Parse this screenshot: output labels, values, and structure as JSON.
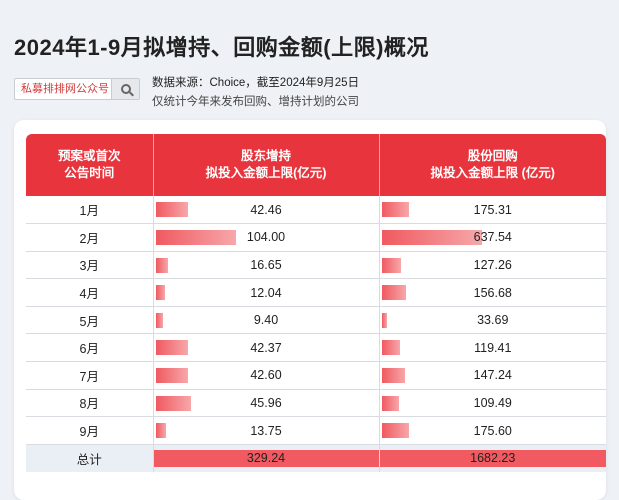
{
  "title": "2024年1-9月拟增持、回购金额(上限)概况",
  "search": {
    "text": "私募排排网公众号"
  },
  "notes": {
    "source": "数据来源：Choice，截至2024年9月25日",
    "scope": "仅统计今年来发布回购、增持计划的公司"
  },
  "table": {
    "headers": [
      [
        "预案或首次",
        "公告时间"
      ],
      [
        "股东增持",
        "拟投入金额上限(亿元)"
      ],
      [
        "股份回购",
        "拟投入金额上限 (亿元)"
      ]
    ],
    "total_label": "总计",
    "total_values": [
      "329.24",
      "1682.23"
    ]
  },
  "chart_data": {
    "type": "table",
    "title": "2024年1-9月拟增持、回购金额(上限)概况",
    "categories": [
      "1月",
      "2月",
      "3月",
      "4月",
      "5月",
      "6月",
      "7月",
      "8月",
      "9月"
    ],
    "series": [
      {
        "name": "股东增持 拟投入金额上限(亿元)",
        "values": [
          42.46,
          104.0,
          16.65,
          12.04,
          9.4,
          42.37,
          42.6,
          45.96,
          13.75
        ]
      },
      {
        "name": "股份回购 拟投入金额上限 (亿元)",
        "values": [
          175.31,
          637.54,
          127.26,
          156.68,
          33.69,
          119.41,
          147.24,
          109.49,
          175.6
        ]
      }
    ],
    "display_values": [
      [
        "42.46",
        "104.00",
        "16.65",
        "12.04",
        "9.40",
        "42.37",
        "42.60",
        "45.96",
        "13.75"
      ],
      [
        "175.31",
        "637.54",
        "127.26",
        "156.68",
        "33.69",
        "119.41",
        "147.24",
        "109.49",
        "175.60"
      ]
    ],
    "totals": [
      329.24,
      1682.23
    ],
    "colors": {
      "header": "#e8343c",
      "bar": "#ef5a60",
      "total_bg": "#eaeef5"
    }
  }
}
